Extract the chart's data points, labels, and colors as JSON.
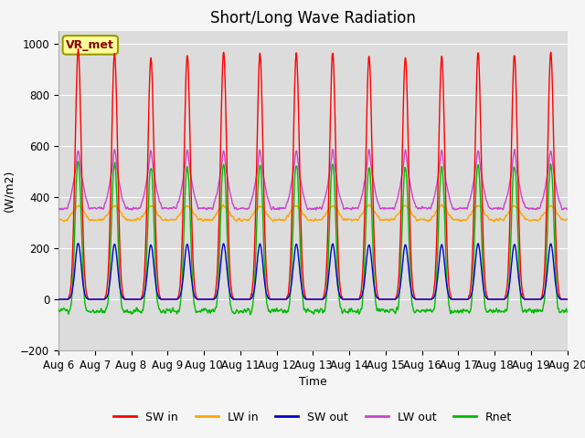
{
  "title": "Short/Long Wave Radiation",
  "ylabel": "(W/m2)",
  "xlabel": "Time",
  "ylim": [
    -200,
    1050
  ],
  "xtick_labels": [
    "Aug 6",
    "Aug 7",
    "Aug 8",
    "Aug 9",
    "Aug 10",
    "Aug 11",
    "Aug 12",
    "Aug 13",
    "Aug 14",
    "Aug 15",
    "Aug 16",
    "Aug 17",
    "Aug 18",
    "Aug 19",
    "Aug 20"
  ],
  "series": {
    "SW_in": {
      "color": "#ff0000",
      "label": "SW in"
    },
    "LW_in": {
      "color": "#ffa500",
      "label": "LW in"
    },
    "SW_out": {
      "color": "#0000cc",
      "label": "SW out"
    },
    "LW_out": {
      "color": "#cc44cc",
      "label": "LW out"
    },
    "Rnet": {
      "color": "#00bb00",
      "label": "Rnet"
    }
  },
  "annotation": "VR_met",
  "annotation_color": "#8B0000",
  "annotation_bg": "#ffff99",
  "background_color": "#dcdcdc",
  "grid_color": "#ffffff",
  "legend_fontsize": 9,
  "title_fontsize": 12,
  "linewidth": 1.0
}
